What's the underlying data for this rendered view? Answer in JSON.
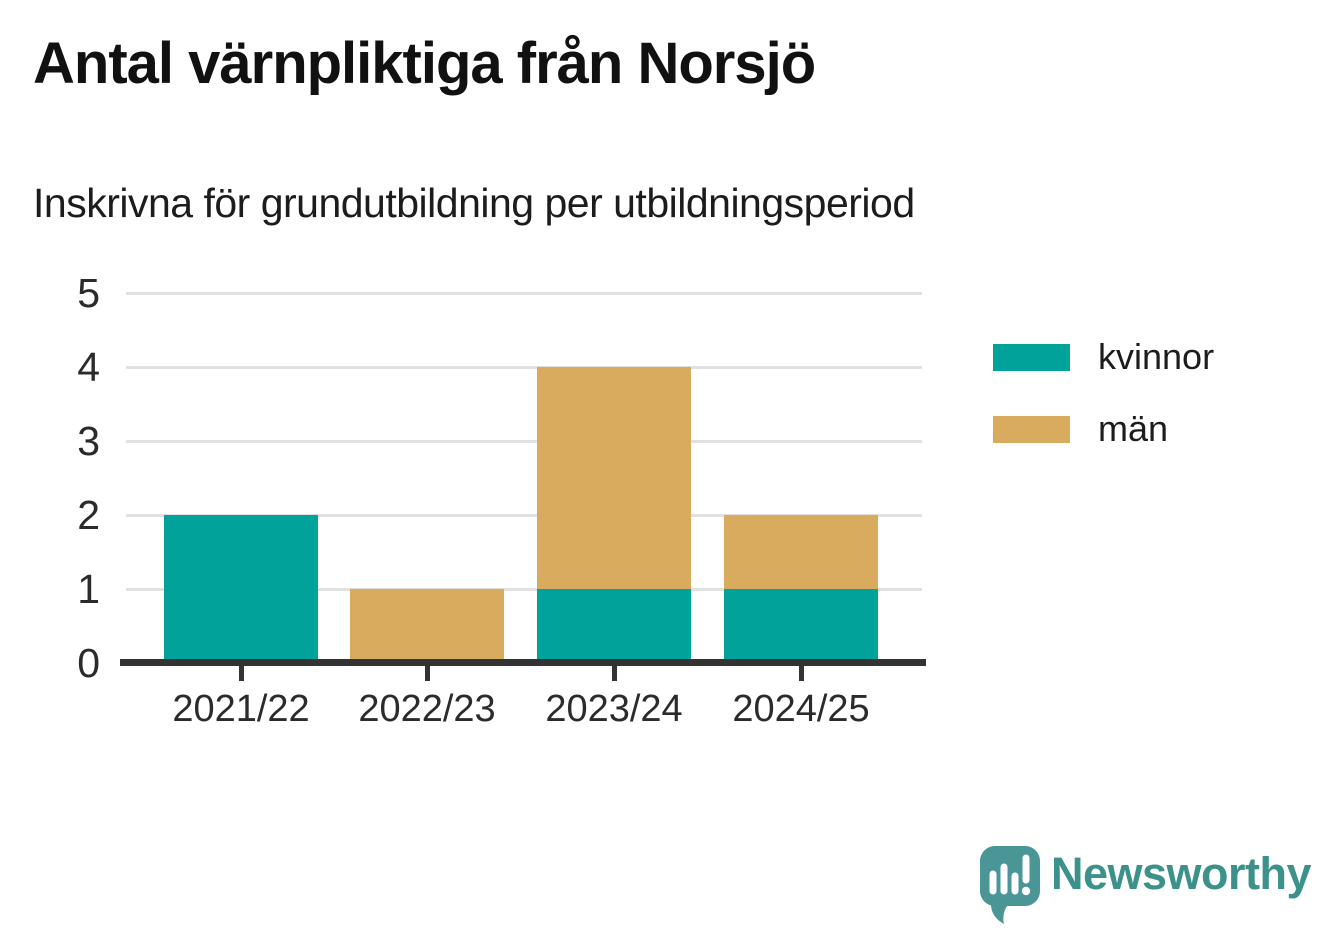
{
  "header": {
    "title": "Antal värnpliktiga från Norsjö",
    "subtitle": "Inskrivna för grundutbildning per utbildningsperiod"
  },
  "chart_data": {
    "type": "bar",
    "stacked": true,
    "title": "Antal värnpliktiga från Norsjö",
    "subtitle": "Inskrivna för grundutbildning per utbildningsperiod",
    "categories": [
      "2021/22",
      "2022/23",
      "2023/24",
      "2024/25"
    ],
    "series": [
      {
        "name": "kvinnor",
        "color": "#00a29a",
        "values": [
          2,
          0,
          1,
          1
        ]
      },
      {
        "name": "män",
        "color": "#d9ab5e",
        "values": [
          0,
          1,
          3,
          1
        ]
      }
    ],
    "totals": [
      2,
      1,
      4,
      2
    ],
    "xlabel": "",
    "ylabel": "",
    "ylim": [
      0,
      5
    ],
    "yticks": [
      0,
      1,
      2,
      3,
      4,
      5
    ],
    "grid": true,
    "legend_position": "right-top"
  },
  "style": {
    "axis_color": "#333333",
    "grid_color": "#e1e1e1",
    "tick_label_color": "#2b2b2b",
    "title_color": "#111111"
  },
  "footer": {
    "brand": "Newsworthy",
    "brand_color": "#3c928b",
    "logo_bubble_color": "#4a9596"
  }
}
